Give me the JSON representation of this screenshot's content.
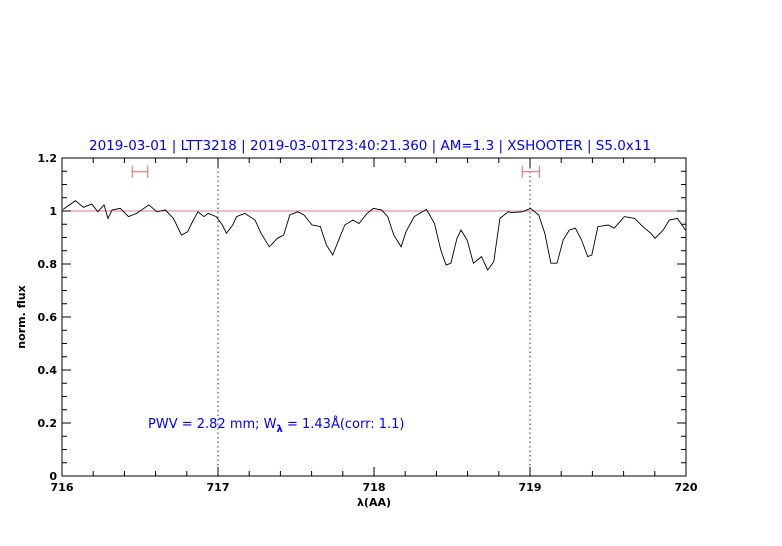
{
  "chart_data": {
    "type": "line",
    "title": "2019-03-01 | LTT3218 | 2019-03-01T23:40:21.360 | AM=1.3 | XSHOOTER | S5.0x11",
    "xlabel": "λ(AA)",
    "ylabel": "norm. flux",
    "xlim": [
      716,
      720
    ],
    "ylim": [
      0,
      1.2
    ],
    "xticks": [
      "716",
      "717",
      "718",
      "719",
      "720"
    ],
    "yticks": [
      "0",
      "0.2",
      "0.4",
      "0.6",
      "0.8",
      "1",
      "1.2"
    ],
    "grid": false,
    "reference_line": 1.0,
    "vertical_markers": [
      717,
      719
    ],
    "error_bars": [
      {
        "y": 1.148,
        "xmin": 716.45,
        "xmax": 716.55
      },
      {
        "y": 1.148,
        "xmin": 718.95,
        "xmax": 719.06
      }
    ],
    "annotation": {
      "prefix": "PWV = 2.82 mm; W",
      "sub": "λ",
      "suffix": " = 1.43Å(corr: 1.1)"
    },
    "colors": {
      "spectrum": "#000000",
      "reference": "#d88080",
      "error_bars": "#f06060",
      "title": "#0000ff",
      "annotation": "#0000ff"
    },
    "series": [
      {
        "x": [
          716.007,
          716.086,
          716.138,
          716.191,
          716.23,
          716.269,
          716.295,
          716.321,
          716.374,
          716.426,
          716.478,
          716.557,
          716.609,
          716.662,
          716.714,
          716.766,
          716.806,
          716.831,
          716.871,
          716.91,
          716.937,
          716.988,
          717.028,
          717.054,
          717.094,
          717.119,
          717.172,
          717.237,
          717.276,
          717.329,
          717.381,
          717.421,
          717.46,
          717.512,
          717.551,
          717.603,
          717.656,
          717.695,
          717.735,
          717.774,
          717.813,
          717.865,
          717.904,
          717.956,
          717.996,
          718.048,
          718.088,
          718.127,
          718.174,
          718.205,
          718.258,
          718.336,
          718.388,
          718.428,
          718.462,
          718.493,
          718.532,
          718.558,
          718.597,
          718.637,
          718.663,
          718.689,
          718.729,
          718.768,
          718.807,
          718.86,
          718.885,
          718.951,
          719.003,
          719.056,
          719.095,
          719.134,
          719.173,
          719.213,
          719.252,
          719.291,
          719.33,
          719.37,
          719.396,
          719.435,
          719.501,
          719.54,
          719.605,
          719.671,
          719.723,
          719.775,
          719.801,
          719.854,
          719.893,
          719.945,
          719.997
        ],
        "y": [
          1.006,
          1.039,
          1.014,
          1.026,
          0.997,
          1.023,
          0.972,
          1.004,
          1.01,
          0.979,
          0.991,
          1.023,
          0.997,
          1.004,
          0.972,
          0.909,
          0.922,
          0.953,
          0.997,
          0.979,
          0.991,
          0.979,
          0.947,
          0.916,
          0.947,
          0.979,
          0.991,
          0.966,
          0.916,
          0.865,
          0.897,
          0.909,
          0.985,
          0.997,
          0.985,
          0.947,
          0.941,
          0.872,
          0.834,
          0.891,
          0.947,
          0.966,
          0.953,
          0.991,
          1.01,
          1.004,
          0.979,
          0.909,
          0.865,
          0.922,
          0.979,
          1.006,
          0.953,
          0.853,
          0.796,
          0.803,
          0.897,
          0.928,
          0.891,
          0.803,
          0.815,
          0.828,
          0.777,
          0.809,
          0.972,
          0.997,
          0.994,
          0.997,
          1.01,
          0.985,
          0.916,
          0.803,
          0.803,
          0.891,
          0.928,
          0.935,
          0.891,
          0.828,
          0.834,
          0.941,
          0.947,
          0.935,
          0.979,
          0.972,
          0.941,
          0.916,
          0.897,
          0.928,
          0.966,
          0.972,
          0.928
        ]
      }
    ]
  }
}
